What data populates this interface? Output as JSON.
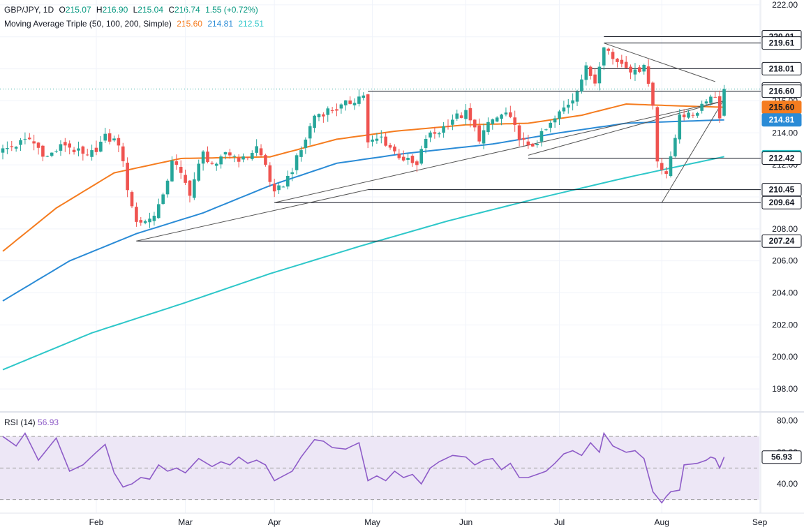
{
  "header": {
    "symbol": "GBP/JPY, 1D",
    "o_label": "O",
    "o": "215.07",
    "h_label": "H",
    "h": "216.90",
    "l_label": "L",
    "l": "215.04",
    "c_label": "C",
    "c": "216.74",
    "change": "1.55 (+0.72%)",
    "change_color": "#089981",
    "ma_label": "Moving Average Triple (50, 100, 200, Simple)",
    "ma50": "215.60",
    "ma100": "214.81",
    "ma200": "212.51"
  },
  "colors": {
    "up": "#26a69a",
    "down": "#ef5350",
    "ma50": "#f57c1f",
    "ma100": "#2a8bd6",
    "ma200": "#2ec7c9",
    "rsi": "#8e5cc8",
    "rsi_band": "#ede7f6"
  },
  "rsi_legend": {
    "label": "RSI (14)",
    "value": "56.93"
  },
  "price_axis": {
    "ticks": [
      "222.00",
      "220.00",
      "218.00",
      "216.00",
      "214.00",
      "212.00",
      "210.00",
      "208.00",
      "206.00",
      "204.00",
      "202.00",
      "200.00",
      "198.00"
    ]
  },
  "rsi_axis": {
    "ticks": [
      "80.00",
      "60.00",
      "40.00"
    ]
  },
  "time_axis": {
    "labels": [
      "Feb",
      "Mar",
      "Apr",
      "May",
      "Jun",
      "Jul",
      "Aug",
      "Sep"
    ]
  },
  "price_tags": [
    {
      "label": "220.01",
      "value": 220.01,
      "bg": "#ffffff",
      "fg": "#131722"
    },
    {
      "label": "219.61",
      "value": 219.61,
      "bg": "#ffffff",
      "fg": "#131722"
    },
    {
      "label": "218.01",
      "value": 218.01,
      "bg": "#ffffff",
      "fg": "#131722"
    },
    {
      "label": "216.74",
      "value": 216.74,
      "bg": "#ffffff",
      "fg": "#131722"
    },
    {
      "label": "216.60",
      "value": 216.6,
      "bg": "#ffffff",
      "fg": "#131722"
    },
    {
      "label": "215.60",
      "value": 215.6,
      "bg": "#f57c1f",
      "fg": "#131722"
    },
    {
      "label": "214.81",
      "value": 214.81,
      "bg": "#2a8bd6",
      "fg": "#ffffff"
    },
    {
      "label": "212.51",
      "value": 212.51,
      "bg": "#2ec7c9",
      "fg": "#131722"
    },
    {
      "label": "212.42",
      "value": 212.42,
      "bg": "#ffffff",
      "fg": "#131722"
    },
    {
      "label": "210.45",
      "value": 210.45,
      "bg": "#ffffff",
      "fg": "#131722"
    },
    {
      "label": "209.64",
      "value": 209.64,
      "bg": "#ffffff",
      "fg": "#131722"
    },
    {
      "label": "207.24",
      "value": 207.24,
      "bg": "#ffffff",
      "fg": "#131722"
    }
  ],
  "chart_data": {
    "type": "candlestick",
    "title": "GBP/JPY, 1D",
    "y_range": [
      197.0,
      222.3
    ],
    "rsi_range": [
      25,
      82
    ],
    "rsi_levels": [
      70,
      30
    ],
    "x_labels_day_index": {
      "Feb": 21,
      "Mar": 41,
      "Apr": 61,
      "May": 83,
      "Jun": 104,
      "Jul": 125,
      "Aug": 148,
      "Sep": 170
    },
    "day_count": 163,
    "waypoints": [
      {
        "d": 0,
        "p": 212.9
      },
      {
        "d": 6,
        "p": 213.6
      },
      {
        "d": 10,
        "p": 212.5
      },
      {
        "d": 14,
        "p": 213.3
      },
      {
        "d": 19,
        "p": 212.4
      },
      {
        "d": 23,
        "p": 213.7
      },
      {
        "d": 26,
        "p": 213.4
      },
      {
        "d": 28,
        "p": 210.6
      },
      {
        "d": 30,
        "p": 208.4
      },
      {
        "d": 33,
        "p": 208.6
      },
      {
        "d": 36,
        "p": 209.9
      },
      {
        "d": 38,
        "p": 212.4
      },
      {
        "d": 40,
        "p": 211.3
      },
      {
        "d": 42,
        "p": 210.3
      },
      {
        "d": 45,
        "p": 212.7
      },
      {
        "d": 48,
        "p": 211.8
      },
      {
        "d": 50,
        "p": 212.8
      },
      {
        "d": 54,
        "p": 212.3
      },
      {
        "d": 57,
        "p": 213.1
      },
      {
        "d": 59,
        "p": 212.0
      },
      {
        "d": 61,
        "p": 210.1
      },
      {
        "d": 64,
        "p": 211.2
      },
      {
        "d": 67,
        "p": 212.9
      },
      {
        "d": 70,
        "p": 215.1
      },
      {
        "d": 73,
        "p": 215.4
      },
      {
        "d": 76,
        "p": 215.6
      },
      {
        "d": 79,
        "p": 216.1
      },
      {
        "d": 81,
        "p": 216.4
      },
      {
        "d": 82,
        "p": 213.3
      },
      {
        "d": 85,
        "p": 213.7
      },
      {
        "d": 88,
        "p": 212.8
      },
      {
        "d": 91,
        "p": 212.2
      },
      {
        "d": 93,
        "p": 211.9
      },
      {
        "d": 95,
        "p": 213.7
      },
      {
        "d": 98,
        "p": 214.1
      },
      {
        "d": 101,
        "p": 214.9
      },
      {
        "d": 104,
        "p": 215.2
      },
      {
        "d": 107,
        "p": 213.7
      },
      {
        "d": 110,
        "p": 214.8
      },
      {
        "d": 113,
        "p": 215.2
      },
      {
        "d": 116,
        "p": 213.8
      },
      {
        "d": 118,
        "p": 213.0
      },
      {
        "d": 120,
        "p": 213.5
      },
      {
        "d": 123,
        "p": 214.5
      },
      {
        "d": 125,
        "p": 215.2
      },
      {
        "d": 128,
        "p": 216.2
      },
      {
        "d": 131,
        "p": 218.0
      },
      {
        "d": 133,
        "p": 217.2
      },
      {
        "d": 135,
        "p": 219.6
      },
      {
        "d": 137,
        "p": 218.6
      },
      {
        "d": 140,
        "p": 218.3
      },
      {
        "d": 142,
        "p": 217.7
      },
      {
        "d": 144,
        "p": 218.4
      },
      {
        "d": 146,
        "p": 215.7
      },
      {
        "d": 147,
        "p": 212.3
      },
      {
        "d": 149,
        "p": 211.5
      },
      {
        "d": 150,
        "p": 212.3
      },
      {
        "d": 151,
        "p": 213.7
      },
      {
        "d": 152,
        "p": 215.3
      },
      {
        "d": 154,
        "p": 215.0
      },
      {
        "d": 156,
        "p": 215.4
      },
      {
        "d": 158,
        "p": 216.2
      },
      {
        "d": 160,
        "p": 216.3
      },
      {
        "d": 161,
        "p": 215.1
      },
      {
        "d": 162,
        "p": 216.74
      }
    ],
    "ma50_waypoints": [
      [
        0,
        206.6
      ],
      [
        12,
        209.3
      ],
      [
        25,
        211.5
      ],
      [
        40,
        212.4
      ],
      [
        60,
        212.5
      ],
      [
        75,
        213.6
      ],
      [
        88,
        214.1
      ],
      [
        104,
        214.5
      ],
      [
        118,
        214.6
      ],
      [
        130,
        215.1
      ],
      [
        140,
        215.8
      ],
      [
        150,
        215.7
      ],
      [
        162,
        215.6
      ]
    ],
    "ma100_waypoints": [
      [
        0,
        203.5
      ],
      [
        15,
        206.0
      ],
      [
        30,
        207.7
      ],
      [
        45,
        209.0
      ],
      [
        60,
        210.7
      ],
      [
        75,
        212.1
      ],
      [
        90,
        212.7
      ],
      [
        110,
        213.3
      ],
      [
        125,
        214.0
      ],
      [
        140,
        214.6
      ],
      [
        150,
        214.7
      ],
      [
        162,
        214.81
      ]
    ],
    "ma200_waypoints": [
      [
        0,
        199.2
      ],
      [
        20,
        201.5
      ],
      [
        40,
        203.3
      ],
      [
        60,
        205.2
      ],
      [
        80,
        206.9
      ],
      [
        100,
        208.5
      ],
      [
        120,
        209.9
      ],
      [
        140,
        211.2
      ],
      [
        150,
        211.8
      ],
      [
        162,
        212.51
      ]
    ],
    "rsi_waypoints": [
      [
        0,
        70
      ],
      [
        3,
        64
      ],
      [
        5,
        72
      ],
      [
        8,
        55
      ],
      [
        10,
        62
      ],
      [
        12,
        69
      ],
      [
        15,
        48
      ],
      [
        18,
        52
      ],
      [
        21,
        60
      ],
      [
        23,
        65
      ],
      [
        25,
        47
      ],
      [
        27,
        38
      ],
      [
        29,
        40
      ],
      [
        31,
        44
      ],
      [
        33,
        43
      ],
      [
        35,
        52
      ],
      [
        37,
        48
      ],
      [
        39,
        50
      ],
      [
        41,
        47
      ],
      [
        44,
        56
      ],
      [
        47,
        51
      ],
      [
        49,
        54
      ],
      [
        51,
        52
      ],
      [
        53,
        57
      ],
      [
        55,
        53
      ],
      [
        57,
        55
      ],
      [
        59,
        52
      ],
      [
        61,
        42
      ],
      [
        63,
        45
      ],
      [
        65,
        48
      ],
      [
        67,
        57
      ],
      [
        70,
        68
      ],
      [
        72,
        67
      ],
      [
        74,
        63
      ],
      [
        77,
        62
      ],
      [
        80,
        66
      ],
      [
        82,
        42
      ],
      [
        84,
        45
      ],
      [
        86,
        42
      ],
      [
        88,
        48
      ],
      [
        90,
        44
      ],
      [
        92,
        46
      ],
      [
        94,
        40
      ],
      [
        96,
        50
      ],
      [
        98,
        54
      ],
      [
        101,
        58
      ],
      [
        104,
        57
      ],
      [
        106,
        52
      ],
      [
        108,
        55
      ],
      [
        110,
        56
      ],
      [
        112,
        49
      ],
      [
        114,
        53
      ],
      [
        116,
        44
      ],
      [
        118,
        44
      ],
      [
        120,
        46
      ],
      [
        122,
        48
      ],
      [
        124,
        53
      ],
      [
        126,
        59
      ],
      [
        128,
        61
      ],
      [
        130,
        58
      ],
      [
        132,
        66
      ],
      [
        134,
        60
      ],
      [
        135,
        72
      ],
      [
        137,
        64
      ],
      [
        140,
        60
      ],
      [
        142,
        61
      ],
      [
        144,
        56
      ],
      [
        146,
        35
      ],
      [
        148,
        28
      ],
      [
        149,
        32
      ],
      [
        150,
        35
      ],
      [
        152,
        36
      ],
      [
        153,
        52
      ],
      [
        156,
        53
      ],
      [
        158,
        55
      ],
      [
        159,
        57
      ],
      [
        160,
        56
      ],
      [
        161,
        50
      ],
      [
        162,
        57
      ]
    ],
    "trendlines": [
      {
        "from": [
          30,
          207.24
        ],
        "to": [
          82,
          210.45
        ]
      },
      {
        "from": [
          61,
          209.64
        ],
        "to": [
          162,
          216.0
        ]
      },
      {
        "from": [
          118,
          212.6
        ],
        "to": [
          162,
          216.0
        ]
      },
      {
        "from": [
          148,
          209.64
        ],
        "to": [
          162,
          216.1
        ]
      },
      {
        "from": [
          135,
          219.61
        ],
        "to": [
          160,
          217.2
        ]
      }
    ],
    "horizontal_levels": [
      {
        "value": 220.01,
        "from_day": 135
      },
      {
        "value": 219.61,
        "from_day": 135
      },
      {
        "value": 218.01,
        "from_day": 131
      },
      {
        "value": 216.6,
        "from_day": 82
      },
      {
        "value": 212.42,
        "from_day": 118
      },
      {
        "value": 210.45,
        "from_day": 82
      },
      {
        "value": 209.64,
        "from_day": 61
      },
      {
        "value": 207.24,
        "from_day": 30
      }
    ]
  }
}
